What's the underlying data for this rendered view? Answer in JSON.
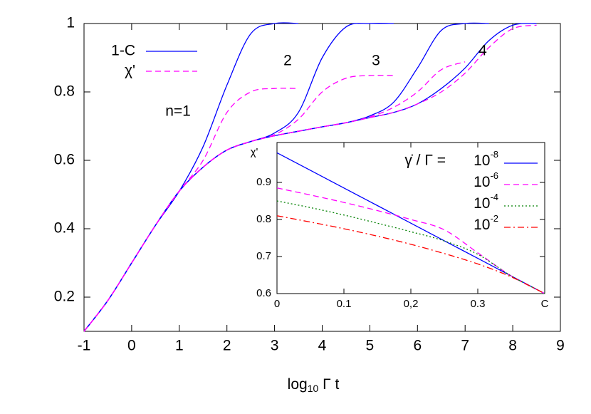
{
  "chart_data": [
    {
      "type": "line",
      "xlabel": {
        "text": "log",
        "sub": "10",
        "rest": " Γ t"
      },
      "x": [
        -1,
        -0.5,
        0,
        0.5,
        1,
        1.5,
        2,
        2.5,
        3,
        3.5,
        4,
        4.5,
        5,
        5.5,
        6,
        6.5,
        7,
        7.5,
        8,
        8.5,
        9
      ],
      "xlim": [
        -1,
        9
      ],
      "xticks": [
        -1,
        0,
        1,
        2,
        3,
        4,
        5,
        6,
        7,
        8,
        9
      ],
      "ylim": [
        0.1,
        1
      ],
      "yticks": [
        0.2,
        0.4,
        0.6,
        0.8,
        1
      ],
      "series": [
        {
          "name": "1-C",
          "color": "#0000ff",
          "dash": "solid",
          "curves": [
            [
              0.1,
              0.19,
              0.3,
              0.41,
              0.51,
              0.64,
              0.82,
              0.97,
              1,
              1,
              null,
              null,
              null,
              null,
              null,
              null,
              null,
              null,
              null,
              null,
              null
            ],
            [
              0.1,
              0.19,
              0.3,
              0.41,
              0.51,
              0.58,
              0.63,
              0.655,
              0.68,
              0.74,
              0.9,
              0.99,
              1,
              1,
              null,
              null,
              null,
              null,
              null,
              null,
              null
            ],
            [
              0.1,
              0.19,
              0.3,
              0.41,
              0.51,
              0.58,
              0.63,
              0.655,
              0.672,
              0.685,
              0.698,
              0.71,
              0.73,
              0.77,
              0.87,
              0.98,
              1,
              1,
              null,
              null,
              null
            ],
            [
              0.1,
              0.19,
              0.3,
              0.41,
              0.51,
              0.58,
              0.63,
              0.655,
              0.672,
              0.685,
              0.698,
              0.71,
              0.725,
              0.74,
              0.765,
              0.81,
              0.87,
              0.95,
              0.995,
              1,
              null
            ]
          ]
        },
        {
          "name": "χ'",
          "color": "#ff00ff",
          "dash": "dashed",
          "curves": [
            [
              0.1,
              0.19,
              0.3,
              0.41,
              0.51,
              0.6,
              0.74,
              0.8,
              0.81,
              0.81,
              null,
              null,
              null,
              null,
              null,
              null,
              null,
              null,
              null,
              null,
              null
            ],
            [
              0.1,
              0.19,
              0.3,
              0.41,
              0.51,
              0.58,
              0.63,
              0.655,
              0.675,
              0.72,
              0.8,
              0.84,
              0.848,
              0.848,
              null,
              null,
              null,
              null,
              null,
              null,
              null
            ],
            [
              0.1,
              0.19,
              0.3,
              0.41,
              0.51,
              0.58,
              0.63,
              0.655,
              0.672,
              0.685,
              0.698,
              0.71,
              0.727,
              0.755,
              0.8,
              0.865,
              0.888,
              null,
              null,
              null,
              null
            ],
            [
              0.1,
              0.19,
              0.3,
              0.41,
              0.51,
              0.58,
              0.63,
              0.655,
              0.672,
              0.685,
              0.698,
              0.71,
              0.725,
              0.74,
              0.765,
              0.8,
              0.855,
              0.93,
              0.985,
              0.995,
              null
            ]
          ]
        }
      ],
      "annotations": [
        "n=1",
        "2",
        "3",
        "4"
      ]
    },
    {
      "type": "line",
      "ylabel": "χ'",
      "legend_title": "γ̇ / Γ =",
      "x": [
        0,
        0.05,
        0.1,
        0.15,
        0.2,
        0.25,
        0.3,
        0.35,
        0.4
      ],
      "xlim": [
        0,
        0.4
      ],
      "xticks": [
        0,
        0.1,
        {
          "value": 0.2,
          "label": "0,2"
        },
        0.3,
        {
          "value": 0.4,
          "label": "C"
        }
      ],
      "ylim": [
        0.6,
        1.0
      ],
      "yticks": [
        0.6,
        0.7,
        0.8,
        0.9
      ],
      "series": [
        {
          "name": "10",
          "exponent": "-8",
          "color": "#0000ff",
          "dash": "solid",
          "values": [
            0.98,
            0.9325,
            0.885,
            0.8375,
            0.79,
            0.7425,
            0.695,
            0.6475,
            0.6
          ]
        },
        {
          "name": "10",
          "exponent": "-6",
          "color": "#ff00ff",
          "dash": "dashed",
          "values": [
            0.885,
            0.866,
            0.846,
            0.824,
            0.8,
            0.772,
            0.71,
            0.6475,
            0.6
          ]
        },
        {
          "name": "10",
          "exponent": "-4",
          "color": "#008000",
          "dash": "dotted",
          "values": [
            0.85,
            0.832,
            0.812,
            0.79,
            0.767,
            0.742,
            0.706,
            0.6475,
            0.6
          ]
        },
        {
          "name": "10",
          "exponent": "-2",
          "color": "#ff0000",
          "dash": "dashdot",
          "values": [
            0.81,
            0.793,
            0.775,
            0.755,
            0.733,
            0.708,
            0.68,
            0.645,
            0.6
          ]
        }
      ]
    }
  ]
}
